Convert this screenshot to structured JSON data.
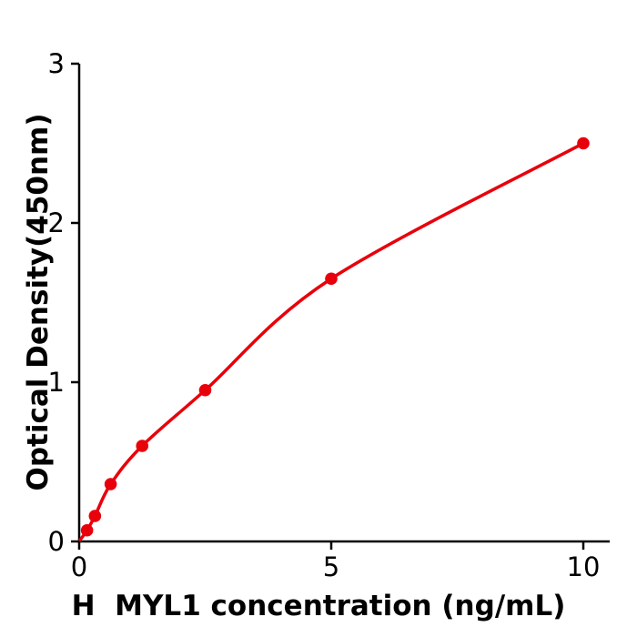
{
  "chart_data": {
    "type": "scatter",
    "title": "",
    "xlabel": "H  MYL1 concentration (ng/mL)",
    "ylabel": "Optical Density(450nm)",
    "x": [
      0.156,
      0.313,
      0.625,
      1.25,
      2.5,
      5,
      10
    ],
    "y": [
      0.07,
      0.16,
      0.36,
      0.6,
      0.95,
      1.65,
      2.5
    ],
    "fit_curve": "smooth saturating dose-response fit through all points",
    "xticks": [
      0,
      5,
      10
    ],
    "yticks": [
      0,
      1,
      2,
      3
    ],
    "xlim": [
      0,
      10.5
    ],
    "ylim": [
      0,
      3
    ],
    "grid": false,
    "legend": null,
    "line_color": "#e8000b",
    "marker_color": "#e8000b",
    "axis_color": "#000000",
    "background_color": "#ffffff"
  }
}
